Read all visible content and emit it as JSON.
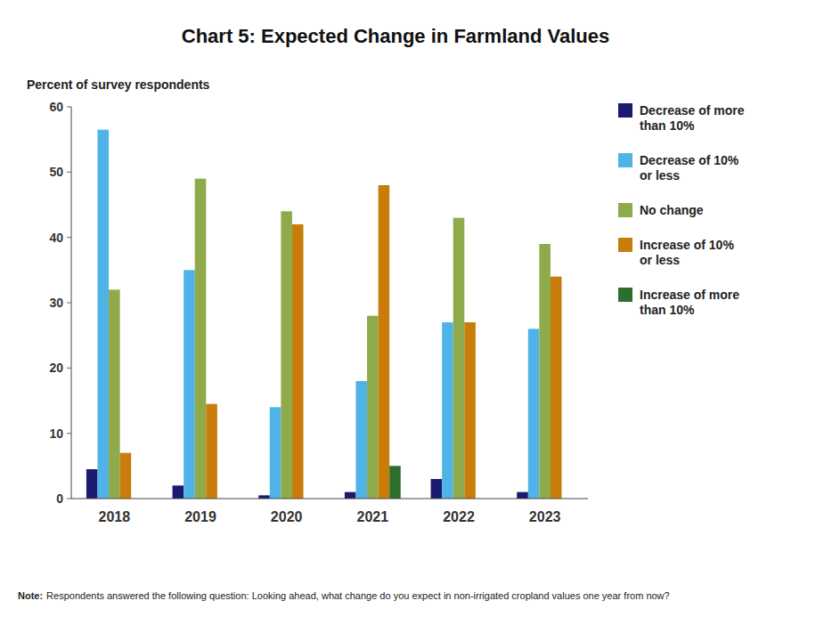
{
  "chart_data": {
    "type": "bar",
    "title": "Chart 5: Expected Change in Farmland Values",
    "ylabel": "Percent of survey respondents",
    "annotations": [
      "Note:",
      "Respondents answered the following question: Looking ahead, what change do you expect in non-irrigated cropland values one year from now?"
    ],
    "categories": [
      "2018",
      "2019",
      "2020",
      "2021",
      "2022",
      "2023"
    ],
    "series": [
      {
        "name": "Decrease of more\nthan 10%",
        "color": "#1a1a6e",
        "values": [
          4.5,
          2.0,
          0.5,
          1.0,
          3.0,
          1.0
        ]
      },
      {
        "name": "Decrease of 10%\nor less",
        "color": "#4fb3e8",
        "values": [
          56.5,
          35.0,
          14.0,
          18.0,
          27.0,
          26.0
        ]
      },
      {
        "name": "No change",
        "color": "#8faa4b",
        "values": [
          32.0,
          49.0,
          44.0,
          28.0,
          43.0,
          39.0
        ]
      },
      {
        "name": "Increase of 10%\nor less",
        "color": "#c87c0a",
        "values": [
          7.0,
          14.5,
          42.0,
          48.0,
          27.0,
          34.0
        ]
      },
      {
        "name": "Increase of more\nthan 10%",
        "color": "#2d6e2d",
        "values": [
          0.0,
          0.0,
          0.0,
          5.0,
          0.0,
          0.0
        ]
      }
    ],
    "ylim": [
      0,
      60
    ],
    "yticks": [
      0,
      10,
      20,
      30,
      40,
      50,
      60
    ],
    "grid": false,
    "legend": "right"
  }
}
